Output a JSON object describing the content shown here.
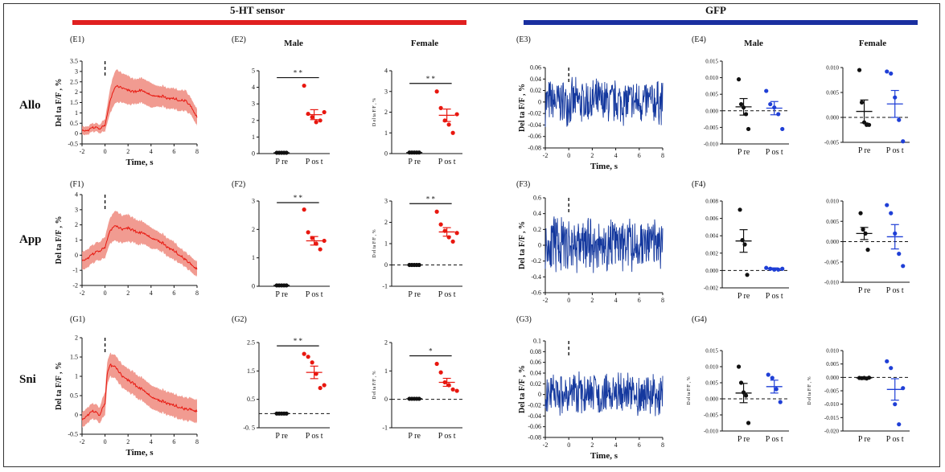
{
  "banners": {
    "left": {
      "label": "5-HT sensor",
      "color": "#e02020"
    },
    "right": {
      "label": "GFP",
      "color": "#1a2fa0"
    }
  },
  "row_labels": [
    "Allo",
    "App",
    "Sni"
  ],
  "group_headers": {
    "male": "Male",
    "female": "Female"
  },
  "colors": {
    "red_line": "#e8170f",
    "red_band": "#ef8a7e",
    "blue_line": "#14389e",
    "red_dot": "#e8170f",
    "blue_dot": "#1f3fd6",
    "black_dot": "#111111"
  },
  "chart_data": [
    {
      "id": "E1",
      "type": "line",
      "panel_label": "(E1)",
      "kind": "trace-red",
      "xlabel": "Time, s",
      "ylabel": "Del ta F/F , %",
      "xlim": [
        -2,
        8
      ],
      "xticks": [
        -2,
        0,
        2,
        4,
        6,
        8
      ],
      "ylim": [
        -0.5,
        3.5
      ],
      "yticks": [
        -0.5,
        0,
        0.5,
        1,
        1.5,
        2,
        2.5,
        3,
        3.5
      ],
      "yticklabels": [
        "-0.5",
        "0",
        "0.5",
        "1",
        "1.5",
        "2",
        "2.5",
        "3",
        "3.5"
      ],
      "series": {
        "name": "mean",
        "x": [
          -2,
          -1.5,
          -1,
          -0.5,
          0,
          0.3,
          0.6,
          1,
          1.5,
          2,
          2.5,
          3,
          3.5,
          4,
          4.5,
          5,
          5.5,
          6,
          6.5,
          7,
          7.5,
          8
        ],
        "values": [
          0.2,
          0.15,
          0.3,
          0.25,
          0.4,
          1.2,
          1.9,
          2.3,
          2.2,
          2.1,
          2.0,
          2.1,
          2.0,
          1.9,
          1.8,
          1.8,
          1.7,
          1.7,
          1.6,
          1.6,
          1.3,
          0.8
        ],
        "sem": [
          0.2,
          0.2,
          0.2,
          0.2,
          0.3,
          0.5,
          0.7,
          0.8,
          0.7,
          0.7,
          0.6,
          0.6,
          0.6,
          0.6,
          0.5,
          0.5,
          0.5,
          0.5,
          0.5,
          0.5,
          0.4,
          0.4
        ]
      }
    },
    {
      "id": "E2",
      "type": "scatter",
      "panel_label": "(E2)",
      "header": "Male",
      "kind": "dots-red",
      "ylim": [
        0,
        5
      ],
      "yticks": [
        0,
        1,
        2,
        3,
        4,
        5
      ],
      "yticklabels": [
        "0",
        "1",
        "2",
        "3",
        "4",
        "5"
      ],
      "categories": [
        "P re",
        "P os t"
      ],
      "series": [
        {
          "name": "P re",
          "values": [
            0.05,
            0.05,
            0.05,
            0.05,
            0.05
          ],
          "mean": 0.05,
          "sem": 0.02
        },
        {
          "name": "P os t",
          "values": [
            4.1,
            2.4,
            2.2,
            1.9,
            2.0,
            2.5
          ],
          "mean": 2.35,
          "sem": 0.3
        }
      ],
      "significance": "* *",
      "zero_line": false
    },
    {
      "id": "E2f",
      "type": "scatter",
      "header": "Female",
      "kind": "dots-red",
      "ylabel": "D el ta F/F , %",
      "ylim": [
        0,
        4
      ],
      "yticks": [
        0,
        1,
        2,
        3,
        4
      ],
      "yticklabels": [
        "0",
        "1",
        "2",
        "3",
        "4"
      ],
      "categories": [
        "P re",
        "P os t"
      ],
      "series": [
        {
          "name": "P re",
          "values": [
            0.05,
            0.05,
            0.05,
            0.05,
            0.05
          ],
          "mean": 0.05,
          "sem": 0.02
        },
        {
          "name": "P os t",
          "values": [
            3.0,
            2.2,
            1.6,
            1.4,
            1.0,
            1.9
          ],
          "mean": 1.85,
          "sem": 0.3
        }
      ],
      "significance": "* *",
      "zero_line": false
    },
    {
      "id": "E3",
      "type": "line",
      "panel_label": "(E3)",
      "kind": "trace-blue",
      "xlabel": "Time, s",
      "ylabel": "Del ta F/F , %",
      "xlim": [
        -2,
        8
      ],
      "xticks": [
        -2,
        0,
        2,
        4,
        6,
        8
      ],
      "ylim": [
        -0.08,
        0.06
      ],
      "yticks": [
        -0.08,
        -0.06,
        -0.04,
        -0.02,
        0,
        0.02,
        0.04,
        0.06
      ],
      "yticklabels": [
        "-0.08",
        "-0.06",
        "-0.04",
        "-0.02",
        "0",
        "0.02",
        "0.04",
        "0.06"
      ],
      "noise": {
        "mean": 0.0,
        "amplitude": 0.045,
        "seed": 7
      }
    },
    {
      "id": "E4",
      "type": "scatter",
      "panel_label": "(E4)",
      "header": "Male",
      "kind": "dots-blue",
      "ylim": [
        -0.01,
        0.015
      ],
      "yticks": [
        -0.01,
        -0.005,
        0,
        0.005,
        0.01,
        0.015
      ],
      "yticklabels": [
        "-0.010",
        "-0.005",
        "0.000",
        "0.005",
        "0.010",
        "0.015"
      ],
      "categories": [
        "P re",
        "P os t"
      ],
      "series": [
        {
          "name": "P re",
          "values": [
            0.0095,
            0.002,
            0.001,
            -0.001,
            -0.0055
          ],
          "mean": 0.0012,
          "sem": 0.0025
        },
        {
          "name": "P os t",
          "values": [
            0.006,
            0.002,
            0.001,
            -0.001,
            -0.0055
          ],
          "mean": 0.0008,
          "sem": 0.002
        }
      ],
      "zero_line": true
    },
    {
      "id": "E4f",
      "type": "scatter",
      "header": "Female",
      "kind": "dots-blue",
      "ylim": [
        -0.005,
        0.01
      ],
      "yticks": [
        -0.005,
        0,
        0.005,
        0.01
      ],
      "yticklabels": [
        "-0.005",
        "0.000",
        "0.005",
        "0.010"
      ],
      "categories": [
        "P re",
        "P os t"
      ],
      "series": [
        {
          "name": "P re",
          "values": [
            0.0095,
            0.003,
            -0.001,
            -0.0015,
            -0.0015
          ],
          "mean": 0.0012,
          "sem": 0.0023
        },
        {
          "name": "P os t",
          "values": [
            0.0092,
            0.0088,
            0.004,
            -0.0005,
            -0.0048
          ],
          "mean": 0.0027,
          "sem": 0.0027
        }
      ],
      "zero_line": true
    },
    {
      "id": "F1",
      "type": "line",
      "panel_label": "(F1)",
      "kind": "trace-red",
      "ylabel": "Del ta F/F , %",
      "xlim": [
        -2,
        8
      ],
      "xticks": [
        -2,
        0,
        2,
        4,
        6,
        8
      ],
      "ylim": [
        -2,
        4
      ],
      "yticks": [
        -2,
        -1,
        0,
        1,
        2,
        3,
        4
      ],
      "yticklabels": [
        "-2",
        "-1",
        "0",
        "1",
        "2",
        "3",
        "4"
      ],
      "series": {
        "name": "mean",
        "x": [
          -2,
          -1.5,
          -1,
          -0.5,
          0,
          0.3,
          0.6,
          1,
          1.5,
          2,
          2.5,
          3,
          3.5,
          4,
          4.5,
          5,
          5.5,
          6,
          6.5,
          7,
          7.5,
          8
        ],
        "values": [
          -0.3,
          -0.2,
          0.1,
          0.3,
          0.5,
          1.3,
          1.8,
          1.9,
          1.7,
          1.8,
          1.6,
          1.5,
          1.4,
          1.2,
          1.0,
          0.8,
          0.5,
          0.3,
          0.0,
          -0.3,
          -0.6,
          -0.9
        ],
        "sem": [
          0.6,
          0.6,
          0.6,
          0.6,
          0.7,
          0.8,
          0.9,
          1.0,
          0.9,
          0.9,
          0.8,
          0.8,
          0.7,
          0.7,
          0.6,
          0.6,
          0.6,
          0.6,
          0.5,
          0.5,
          0.5,
          0.5
        ]
      }
    },
    {
      "id": "F2",
      "type": "scatter",
      "panel_label": "(F2)",
      "kind": "dots-red",
      "ylim": [
        0,
        3
      ],
      "yticks": [
        0,
        1,
        2,
        3
      ],
      "yticklabels": [
        "0",
        "1",
        "2",
        "3"
      ],
      "categories": [
        "P re",
        "P os t"
      ],
      "series": [
        {
          "name": "P re",
          "values": [
            0.03,
            0.03,
            0.03,
            0.03,
            0.03
          ],
          "mean": 0.03,
          "sem": 0.01
        },
        {
          "name": "P os t",
          "values": [
            2.7,
            1.9,
            1.7,
            1.5,
            1.3,
            1.6
          ],
          "mean": 1.6,
          "sem": 0.15
        }
      ],
      "significance": "* *",
      "zero_line": false
    },
    {
      "id": "F2f",
      "type": "scatter",
      "kind": "dots-red",
      "ylabel": "D el ta F/F , %",
      "ylim": [
        -1,
        3
      ],
      "yticks": [
        -1,
        0,
        1,
        2,
        3
      ],
      "yticklabels": [
        "-1",
        "0",
        "1",
        "2",
        "3"
      ],
      "categories": [
        "P re",
        "P os t"
      ],
      "series": [
        {
          "name": "P re",
          "values": [
            0.0,
            0.0,
            0.0,
            0.0,
            0.0
          ],
          "mean": 0.0,
          "sem": 0.02
        },
        {
          "name": "P os t",
          "values": [
            2.5,
            1.9,
            1.6,
            1.3,
            1.1,
            1.5
          ],
          "mean": 1.55,
          "sem": 0.2
        }
      ],
      "significance": "* *",
      "zero_line": true
    },
    {
      "id": "F3",
      "type": "line",
      "panel_label": "(F3)",
      "kind": "trace-blue",
      "ylabel": "Del ta F/F , %",
      "xlim": [
        -2,
        8
      ],
      "xticks": [
        -2,
        0,
        2,
        4,
        6,
        8
      ],
      "ylim": [
        -0.6,
        0.6
      ],
      "yticks": [
        -0.6,
        -0.4,
        -0.2,
        0,
        0.2,
        0.4,
        0.6
      ],
      "yticklabels": [
        "-0.6",
        "-0.4",
        "-0.2",
        "0",
        "0.2",
        "0.4",
        "0.6"
      ],
      "noise": {
        "mean": 0.0,
        "amplitude": 0.4,
        "seed": 11
      }
    },
    {
      "id": "F4",
      "type": "scatter",
      "panel_label": "(F4)",
      "kind": "dots-blue",
      "ylim": [
        -0.002,
        0.008
      ],
      "yticks": [
        -0.002,
        0,
        0.002,
        0.004,
        0.006,
        0.008
      ],
      "yticklabels": [
        "-0.002",
        "0.000",
        "0.002",
        "0.004",
        "0.006",
        "0.008"
      ],
      "categories": [
        "P re",
        "P os t"
      ],
      "series": [
        {
          "name": "P re",
          "values": [
            0.007,
            0.0035,
            0.003,
            -0.0005
          ],
          "mean": 0.0034,
          "sem": 0.0013
        },
        {
          "name": "P os t",
          "values": [
            0.0003,
            0.0002,
            0.0001,
            0.0001,
            0.0002
          ],
          "mean": 0.0002,
          "sem": 0.0001
        }
      ],
      "zero_line": true
    },
    {
      "id": "F4f",
      "type": "scatter",
      "kind": "dots-blue",
      "ylim": [
        -0.01,
        0.01
      ],
      "yticks": [
        -0.01,
        -0.005,
        0,
        0.005,
        0.01
      ],
      "yticklabels": [
        "-0.010",
        "-0.005",
        "0.000",
        "0.005",
        "0.010"
      ],
      "categories": [
        "P re",
        "P os t"
      ],
      "series": [
        {
          "name": "P re",
          "values": [
            0.007,
            0.003,
            0.002,
            -0.002
          ],
          "mean": 0.002,
          "sem": 0.0015
        },
        {
          "name": "P os t",
          "values": [
            0.009,
            0.007,
            0.002,
            -0.003,
            -0.006
          ],
          "mean": 0.0012,
          "sem": 0.003
        }
      ],
      "zero_line": true
    },
    {
      "id": "G1",
      "type": "line",
      "panel_label": "(G1)",
      "kind": "trace-red",
      "xlabel": "Time, s",
      "ylabel": "Del ta F/F , %",
      "xlim": [
        -2,
        8
      ],
      "xticks": [
        -2,
        0,
        2,
        4,
        6,
        8
      ],
      "ylim": [
        -0.5,
        2
      ],
      "yticks": [
        -0.5,
        0,
        0.5,
        1,
        1.5,
        2
      ],
      "yticklabels": [
        "-0.5",
        "0",
        "0.5",
        "1",
        "1.5",
        "2"
      ],
      "series": {
        "name": "mean",
        "x": [
          -2,
          -1.5,
          -1,
          -0.5,
          0,
          0.2,
          0.5,
          1,
          1.5,
          2,
          2.5,
          3,
          3.5,
          4,
          4.5,
          5,
          5.5,
          6,
          6.5,
          7,
          7.5,
          8
        ],
        "values": [
          -0.1,
          0.0,
          0.1,
          0.0,
          0.3,
          1.1,
          1.3,
          1.2,
          1.0,
          0.9,
          0.8,
          0.7,
          0.6,
          0.5,
          0.4,
          0.35,
          0.3,
          0.25,
          0.2,
          0.15,
          0.15,
          0.1
        ],
        "sem": [
          0.2,
          0.2,
          0.2,
          0.2,
          0.3,
          0.3,
          0.3,
          0.3,
          0.3,
          0.3,
          0.3,
          0.3,
          0.3,
          0.3,
          0.3,
          0.3,
          0.3,
          0.3,
          0.3,
          0.3,
          0.3,
          0.3
        ]
      }
    },
    {
      "id": "G2",
      "type": "scatter",
      "panel_label": "(G2)",
      "kind": "dots-red",
      "ylim": [
        -0.5,
        2.5
      ],
      "yticks": [
        -0.5,
        0.5,
        1.5,
        2.5
      ],
      "yticklabels": [
        "-0. 5",
        "0.5",
        "1.5",
        "2.5"
      ],
      "categories": [
        "P re",
        "P os t"
      ],
      "series": [
        {
          "name": "P re",
          "values": [
            0.0,
            0.0,
            0.0,
            0.0,
            0.0
          ],
          "mean": 0.0,
          "sem": 0.02
        },
        {
          "name": "P os t",
          "values": [
            2.1,
            2.0,
            1.8,
            1.4,
            0.9,
            1.0
          ],
          "mean": 1.45,
          "sem": 0.22
        }
      ],
      "significance": "* *",
      "zero_line": true
    },
    {
      "id": "G2f",
      "type": "scatter",
      "kind": "dots-red",
      "ylabel": "D el ta F/F , %",
      "ylim": [
        -1,
        2
      ],
      "yticks": [
        -1,
        0,
        1,
        2
      ],
      "yticklabels": [
        "-1",
        "0",
        "1",
        "2"
      ],
      "categories": [
        "P re",
        "P os t"
      ],
      "series": [
        {
          "name": "P re",
          "values": [
            0.02,
            0.02,
            0.02,
            0.02,
            0.02
          ],
          "mean": 0.02,
          "sem": 0.01
        },
        {
          "name": "P os t",
          "values": [
            1.25,
            0.95,
            0.6,
            0.5,
            0.35,
            0.3
          ],
          "mean": 0.6,
          "sem": 0.14
        }
      ],
      "significance": "*",
      "zero_line": true
    },
    {
      "id": "G3",
      "type": "line",
      "panel_label": "(G3)",
      "kind": "trace-blue",
      "xlabel": "Time, s",
      "ylabel": "Del ta F/F , %",
      "xlim": [
        -2,
        8
      ],
      "xticks": [
        -2,
        0,
        2,
        4,
        6,
        8
      ],
      "ylim": [
        -0.08,
        0.1
      ],
      "yticks": [
        -0.08,
        -0.06,
        -0.04,
        -0.02,
        0,
        0.02,
        0.04,
        0.06,
        0.08,
        0.1
      ],
      "yticklabels": [
        "-0.08",
        "-0.06",
        "-0.04",
        "-0.02",
        "0",
        "0.02",
        "0.04",
        "0.06",
        "0.08",
        "0.1"
      ],
      "noise": {
        "mean": 0.0,
        "amplitude": 0.045,
        "seed": 23
      }
    },
    {
      "id": "G4",
      "type": "scatter",
      "panel_label": "(G4)",
      "kind": "dots-blue",
      "ylabel": "D el ta F/F , %",
      "ylim": [
        -0.01,
        0.015
      ],
      "yticks": [
        -0.01,
        -0.005,
        0,
        0.005,
        0.01,
        0.015
      ],
      "yticklabels": [
        "-0.010",
        "-0.005",
        "0.000",
        "0.005",
        "0.010",
        "0.015"
      ],
      "categories": [
        "P re",
        "P os t"
      ],
      "series": [
        {
          "name": "P re",
          "values": [
            0.01,
            0.005,
            0.002,
            0.001,
            -0.0075
          ],
          "mean": 0.0018,
          "sem": 0.003
        },
        {
          "name": "P os t",
          "values": [
            0.0075,
            0.0065,
            0.003,
            -0.001
          ],
          "mean": 0.0038,
          "sem": 0.002
        }
      ],
      "zero_line": true
    },
    {
      "id": "G4f",
      "type": "scatter",
      "kind": "dots-blue",
      "ylabel": "D el ta F/F , %",
      "ylim": [
        -0.02,
        0.01
      ],
      "yticks": [
        -0.02,
        -0.015,
        -0.01,
        -0.005,
        0,
        0.005,
        0.01
      ],
      "yticklabels": [
        "-0.020",
        "-0.015",
        "-0.010",
        "-0.005",
        "0.000",
        "0.005",
        "0.010"
      ],
      "categories": [
        "P re",
        "P os t"
      ],
      "series": [
        {
          "name": "P re",
          "values": [
            -0.0002,
            -0.0003,
            -0.0002,
            -0.0004,
            -0.0001
          ],
          "mean": -0.0002,
          "sem": 0.0001
        },
        {
          "name": "P os t",
          "values": [
            0.006,
            0.0035,
            -0.01,
            -0.0175,
            -0.004
          ],
          "mean": -0.0045,
          "sem": 0.004
        }
      ],
      "zero_line": true
    }
  ]
}
